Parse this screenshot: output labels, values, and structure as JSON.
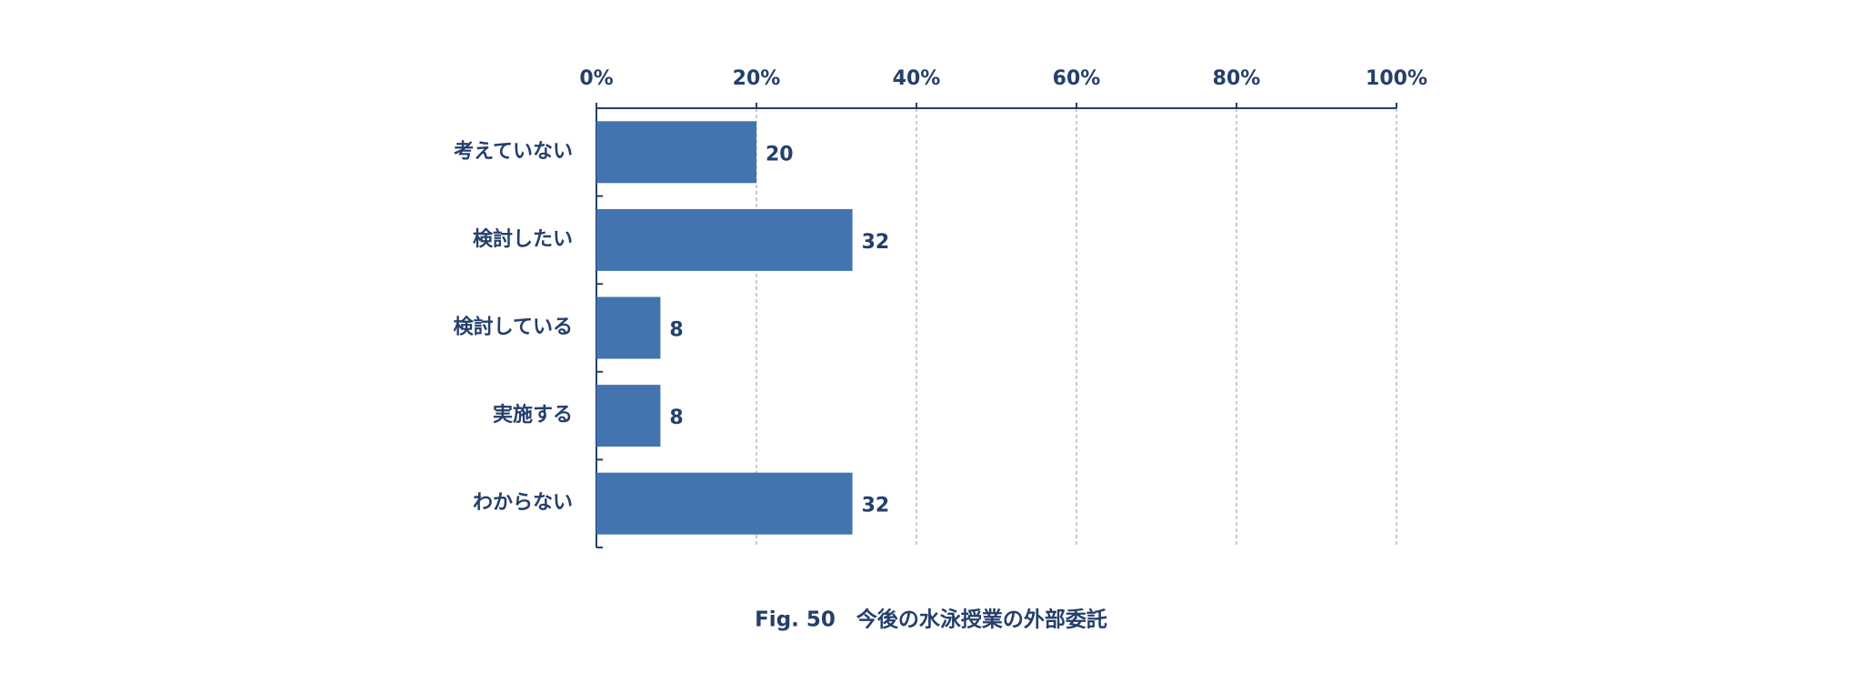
{
  "chart_data": {
    "type": "bar",
    "orientation": "horizontal",
    "caption": "Fig. 50　今後の水泳授業の外部委託",
    "categories": [
      "考えていない",
      "検討したい",
      "検討している",
      "実施する",
      "わからない"
    ],
    "values": [
      20,
      32,
      8,
      8,
      32
    ],
    "color": "#4374b0",
    "xlim": [
      0,
      100
    ],
    "xticks": [
      {
        "value": 0,
        "label": "0%"
      },
      {
        "value": 20,
        "label": "20%"
      },
      {
        "value": 40,
        "label": "40%"
      },
      {
        "value": 60,
        "label": "60%"
      },
      {
        "value": 80,
        "label": "80%"
      },
      {
        "value": 100,
        "label": "100%"
      }
    ],
    "grid": true
  }
}
